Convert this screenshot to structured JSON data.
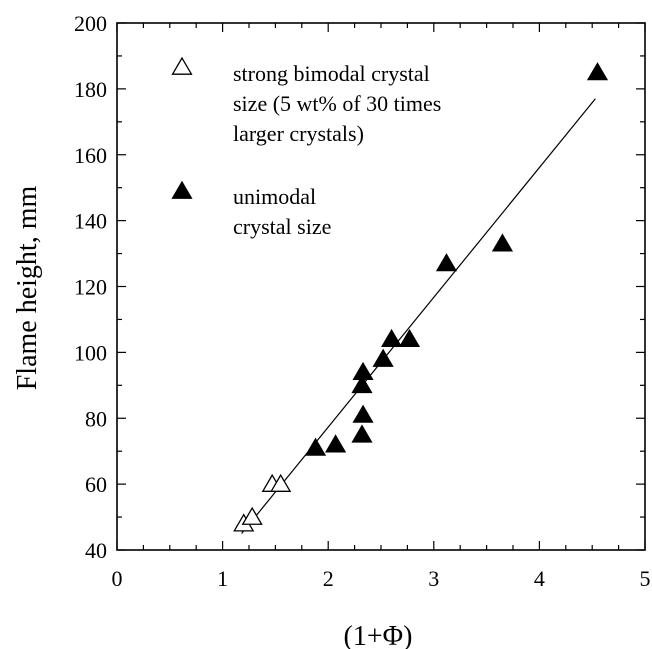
{
  "chart_data": {
    "type": "scatter",
    "title": "",
    "xlabel": "(1+Φ)",
    "ylabel": "Flame height, mm",
    "xlim": [
      0,
      5
    ],
    "ylim": [
      40,
      200
    ],
    "x_ticks": [
      0,
      1,
      2,
      3,
      4,
      5
    ],
    "y_ticks": [
      40,
      60,
      80,
      100,
      120,
      140,
      160,
      180,
      200
    ],
    "x_minor_step": 0.25,
    "y_minor_step": 10,
    "grid": false,
    "legend_position": "top-left",
    "series": [
      {
        "name": "strong bimodal crystal size (5 wt% of 30 times larger crystals)",
        "marker": "open-triangle",
        "color": "#000000",
        "points": [
          {
            "x": 1.2,
            "y": 48
          },
          {
            "x": 1.28,
            "y": 50
          },
          {
            "x": 1.47,
            "y": 60
          },
          {
            "x": 1.55,
            "y": 60
          }
        ]
      },
      {
        "name": "unimodal crystal size",
        "marker": "filled-triangle",
        "color": "#000000",
        "points": [
          {
            "x": 1.88,
            "y": 71
          },
          {
            "x": 2.07,
            "y": 72
          },
          {
            "x": 2.32,
            "y": 75
          },
          {
            "x": 2.33,
            "y": 81
          },
          {
            "x": 2.32,
            "y": 90
          },
          {
            "x": 2.33,
            "y": 94
          },
          {
            "x": 2.52,
            "y": 98
          },
          {
            "x": 2.6,
            "y": 104
          },
          {
            "x": 2.77,
            "y": 104
          },
          {
            "x": 3.12,
            "y": 127
          },
          {
            "x": 3.65,
            "y": 133
          },
          {
            "x": 4.55,
            "y": 185
          }
        ]
      }
    ],
    "fit_line": {
      "x": [
        1.18,
        4.53
      ],
      "y": [
        45,
        177
      ]
    },
    "legend": {
      "open_label_lines": [
        "strong bimodal crystal",
        "size (5 wt% of  30 times",
        "larger crystals)"
      ],
      "filled_label_lines": [
        "unimodal",
        "crystal size"
      ]
    }
  }
}
